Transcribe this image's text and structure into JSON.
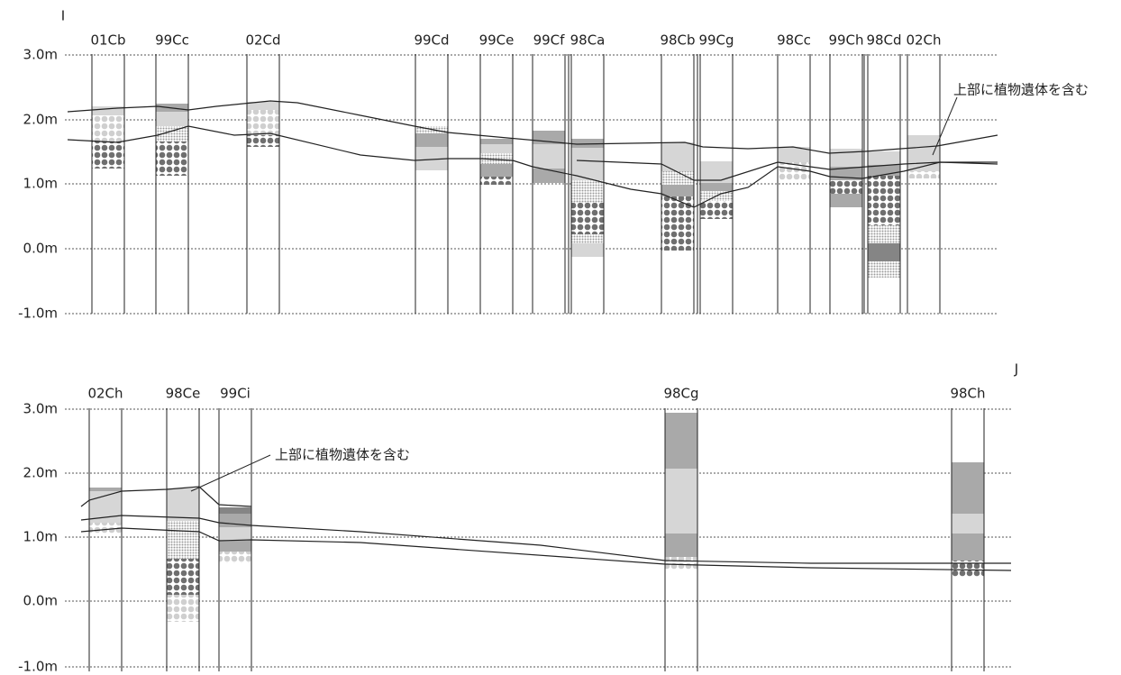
{
  "sections": [
    {
      "label": "I",
      "axis_labels": [
        "3.0m",
        "2.0m",
        "1.0m",
        "0.0m",
        "-1.0m"
      ],
      "cores": [
        "01Cb",
        "99Cc",
        "02Cd",
        "99Cd",
        "99Ce",
        "99Cf",
        "98Ca",
        "98Cb",
        "99Cg",
        "98Cc",
        "99Ch",
        "98Cd",
        "02Ch"
      ],
      "annotation": "上部に植物遺体を含む"
    },
    {
      "label": "J",
      "axis_labels": [
        "3.0m",
        "2.0m",
        "1.0m",
        "0.0m",
        "-1.0m"
      ],
      "cores": [
        "02Ch",
        "98Ce",
        "99Ci",
        "98Cg",
        "98Ch"
      ],
      "annotation": "上部に植物遺体を含む"
    }
  ]
}
